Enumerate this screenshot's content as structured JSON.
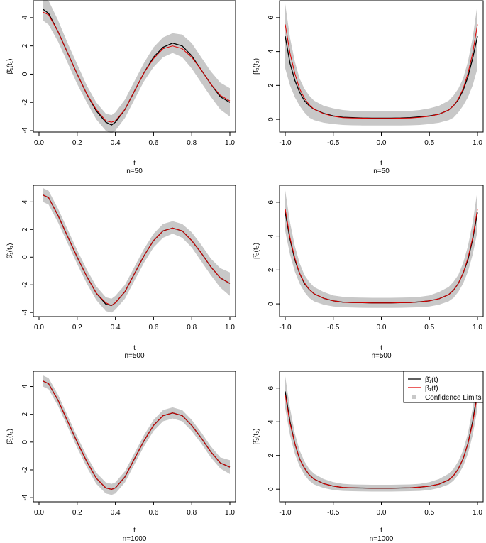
{
  "colors": {
    "estimate": "#000000",
    "true": "#e00000",
    "band": "#c8c8c8",
    "axis": "#000000"
  },
  "legend": {
    "entries": [
      {
        "label": "β̂₁(t)",
        "type": "line",
        "color": "#000000"
      },
      {
        "label": "β₁(t)",
        "type": "line",
        "color": "#e00000"
      },
      {
        "label": "Confidence Limits",
        "type": "square",
        "color": "#c8c8c8"
      }
    ],
    "position": "top-right of bottom-right panel"
  },
  "chart_data": [
    {
      "type": "line",
      "panel": "beta1",
      "xlabel": "t",
      "subtitle": "n=50",
      "ylabel": "β̂₁(t₁)",
      "xlim": [
        0,
        1
      ],
      "ylim": [
        -4.1,
        5.2
      ],
      "xticks": [
        0,
        0.2,
        0.4,
        0.6,
        0.8,
        1
      ],
      "xtick_labels": [
        "0.0",
        "0.2",
        "0.4",
        "0.6",
        "0.8",
        "1.0"
      ],
      "yticks": [
        -4,
        -2,
        0,
        2,
        4
      ],
      "ytick_labels": [
        "-4",
        "-2",
        "0",
        "2",
        "4"
      ],
      "x": [
        0.02,
        0.05,
        0.1,
        0.15,
        0.2,
        0.25,
        0.3,
        0.35,
        0.38,
        0.4,
        0.45,
        0.5,
        0.55,
        0.6,
        0.65,
        0.7,
        0.75,
        0.8,
        0.85,
        0.9,
        0.95,
        1.0
      ],
      "series": [
        {
          "name": "β̂₁(t)",
          "values": [
            4.6,
            4.3,
            3.0,
            1.5,
            0.0,
            -1.4,
            -2.6,
            -3.4,
            -3.6,
            -3.4,
            -2.5,
            -1.2,
            0.1,
            1.2,
            1.9,
            2.2,
            2.0,
            1.3,
            0.3,
            -0.7,
            -1.6,
            -2.0
          ]
        },
        {
          "name": "β₁(t)",
          "values": [
            4.4,
            4.2,
            3.0,
            1.5,
            0.0,
            -1.4,
            -2.5,
            -3.3,
            -3.4,
            -3.3,
            -2.5,
            -1.2,
            0.1,
            1.1,
            1.8,
            2.0,
            1.8,
            1.2,
            0.3,
            -0.7,
            -1.5,
            -1.9
          ]
        },
        {
          "name": "Confidence Limits",
          "lower": [
            3.8,
            3.5,
            2.3,
            0.8,
            -0.7,
            -2.0,
            -3.2,
            -4.0,
            -4.2,
            -4.0,
            -3.1,
            -1.8,
            -0.5,
            0.5,
            1.2,
            1.5,
            1.2,
            0.4,
            -0.6,
            -1.6,
            -2.5,
            -3.0
          ],
          "upper": [
            5.4,
            5.2,
            3.8,
            2.2,
            0.7,
            -0.8,
            -2.0,
            -2.8,
            -2.9,
            -2.7,
            -1.8,
            -0.5,
            0.8,
            1.9,
            2.6,
            2.9,
            2.8,
            2.2,
            1.2,
            0.2,
            -0.6,
            -1.0
          ]
        }
      ]
    },
    {
      "type": "line",
      "panel": "beta2",
      "xlabel": "t",
      "subtitle": "n=50",
      "ylabel": "β̂₂(t₂)",
      "xlim": [
        -1,
        1
      ],
      "ylim": [
        -0.75,
        7.0
      ],
      "xticks": [
        -1,
        -0.5,
        0,
        0.5,
        1
      ],
      "xtick_labels": [
        "-1.0",
        "-0.5",
        "0.0",
        "0.5",
        "1.0"
      ],
      "yticks": [
        0,
        2,
        4,
        6
      ],
      "ytick_labels": [
        "0",
        "2",
        "4",
        "6"
      ],
      "x": [
        -1.0,
        -0.95,
        -0.9,
        -0.85,
        -0.8,
        -0.75,
        -0.7,
        -0.6,
        -0.5,
        -0.4,
        -0.3,
        -0.2,
        -0.1,
        0.0,
        0.1,
        0.2,
        0.3,
        0.4,
        0.5,
        0.6,
        0.7,
        0.75,
        0.8,
        0.85,
        0.9,
        0.95,
        1.0
      ],
      "series": [
        {
          "name": "β̂₁(t)",
          "values": [
            4.9,
            3.3,
            2.3,
            1.6,
            1.1,
            0.8,
            0.6,
            0.35,
            0.2,
            0.12,
            0.1,
            0.08,
            0.07,
            0.07,
            0.07,
            0.08,
            0.1,
            0.15,
            0.2,
            0.3,
            0.55,
            0.8,
            1.15,
            1.7,
            2.5,
            3.6,
            4.9
          ]
        },
        {
          "name": "β₁(t)",
          "values": [
            5.6,
            3.9,
            2.7,
            1.8,
            1.25,
            0.85,
            0.6,
            0.33,
            0.18,
            0.1,
            0.08,
            0.07,
            0.06,
            0.06,
            0.06,
            0.07,
            0.08,
            0.12,
            0.18,
            0.3,
            0.55,
            0.8,
            1.2,
            1.8,
            2.7,
            3.9,
            5.6
          ]
        },
        {
          "name": "Confidence Limits",
          "lower": [
            3.0,
            2.0,
            1.3,
            0.8,
            0.4,
            0.1,
            -0.05,
            -0.2,
            -0.28,
            -0.33,
            -0.35,
            -0.36,
            -0.36,
            -0.36,
            -0.36,
            -0.36,
            -0.35,
            -0.33,
            -0.28,
            -0.2,
            -0.05,
            0.1,
            0.4,
            0.8,
            1.3,
            2.0,
            3.0
          ],
          "upper": [
            6.8,
            4.8,
            3.4,
            2.4,
            1.8,
            1.4,
            1.1,
            0.8,
            0.65,
            0.55,
            0.5,
            0.48,
            0.47,
            0.47,
            0.47,
            0.48,
            0.5,
            0.55,
            0.65,
            0.8,
            1.1,
            1.4,
            1.8,
            2.4,
            3.4,
            4.8,
            6.8
          ]
        }
      ]
    },
    {
      "type": "line",
      "panel": "beta1",
      "xlabel": "t",
      "subtitle": "n=500",
      "ylabel": "β̂₁(t₁)",
      "xlim": [
        0,
        1
      ],
      "ylim": [
        -4.3,
        5.2
      ],
      "xticks": [
        0,
        0.2,
        0.4,
        0.6,
        0.8,
        1
      ],
      "xtick_labels": [
        "0.0",
        "0.2",
        "0.4",
        "0.6",
        "0.8",
        "1.0"
      ],
      "yticks": [
        -4,
        -2,
        0,
        2,
        4
      ],
      "ytick_labels": [
        "-4",
        "-2",
        "0",
        "2",
        "4"
      ],
      "x": [
        0.02,
        0.05,
        0.1,
        0.15,
        0.2,
        0.25,
        0.3,
        0.35,
        0.38,
        0.4,
        0.45,
        0.5,
        0.55,
        0.6,
        0.65,
        0.7,
        0.75,
        0.8,
        0.85,
        0.9,
        0.95,
        1.0
      ],
      "series": [
        {
          "name": "β̂₁(t)",
          "values": [
            4.5,
            4.3,
            3.0,
            1.5,
            0.0,
            -1.4,
            -2.6,
            -3.4,
            -3.5,
            -3.3,
            -2.5,
            -1.2,
            0.1,
            1.2,
            1.9,
            2.1,
            1.9,
            1.2,
            0.3,
            -0.7,
            -1.5,
            -1.9
          ]
        },
        {
          "name": "β₁(t)",
          "values": [
            4.5,
            4.3,
            3.0,
            1.5,
            0.0,
            -1.4,
            -2.6,
            -3.3,
            -3.5,
            -3.3,
            -2.5,
            -1.2,
            0.1,
            1.2,
            1.9,
            2.1,
            1.9,
            1.2,
            0.3,
            -0.7,
            -1.5,
            -1.9
          ]
        },
        {
          "name": "Confidence Limits",
          "lower": [
            4.0,
            3.8,
            2.5,
            1.0,
            -0.5,
            -1.9,
            -3.1,
            -3.9,
            -4.0,
            -3.8,
            -3.0,
            -1.7,
            -0.4,
            0.7,
            1.4,
            1.7,
            1.4,
            0.7,
            -0.3,
            -1.3,
            -2.2,
            -2.8
          ],
          "upper": [
            5.0,
            4.8,
            3.5,
            2.0,
            0.5,
            -0.9,
            -2.1,
            -2.9,
            -3.0,
            -2.8,
            -2.0,
            -0.7,
            0.6,
            1.7,
            2.4,
            2.6,
            2.4,
            1.8,
            0.9,
            -0.1,
            -0.8,
            -1.1
          ]
        }
      ]
    },
    {
      "type": "line",
      "panel": "beta2",
      "xlabel": "t",
      "subtitle": "n=500",
      "ylabel": "β̂₂(t₂)",
      "xlim": [
        -1,
        1
      ],
      "ylim": [
        -0.75,
        7.0
      ],
      "xticks": [
        -1,
        -0.5,
        0,
        0.5,
        1
      ],
      "xtick_labels": [
        "-1.0",
        "-0.5",
        "0.0",
        "0.5",
        "1.0"
      ],
      "yticks": [
        0,
        2,
        4,
        6
      ],
      "ytick_labels": [
        "0",
        "2",
        "4",
        "6"
      ],
      "x": [
        -1.0,
        -0.95,
        -0.9,
        -0.85,
        -0.8,
        -0.75,
        -0.7,
        -0.6,
        -0.5,
        -0.4,
        -0.3,
        -0.2,
        -0.1,
        0.0,
        0.1,
        0.2,
        0.3,
        0.4,
        0.5,
        0.6,
        0.7,
        0.75,
        0.8,
        0.85,
        0.9,
        0.95,
        1.0
      ],
      "series": [
        {
          "name": "β̂₁(t)",
          "values": [
            5.4,
            3.8,
            2.6,
            1.8,
            1.2,
            0.85,
            0.6,
            0.33,
            0.18,
            0.1,
            0.08,
            0.07,
            0.06,
            0.06,
            0.06,
            0.07,
            0.08,
            0.12,
            0.18,
            0.3,
            0.55,
            0.8,
            1.2,
            1.8,
            2.6,
            3.8,
            5.4
          ]
        },
        {
          "name": "β₁(t)",
          "values": [
            5.6,
            3.9,
            2.7,
            1.8,
            1.25,
            0.85,
            0.6,
            0.33,
            0.18,
            0.1,
            0.08,
            0.07,
            0.06,
            0.06,
            0.06,
            0.07,
            0.08,
            0.12,
            0.18,
            0.3,
            0.55,
            0.8,
            1.2,
            1.8,
            2.7,
            3.9,
            5.6
          ]
        },
        {
          "name": "Confidence Limits",
          "lower": [
            4.3,
            2.9,
            1.9,
            1.2,
            0.7,
            0.35,
            0.15,
            -0.05,
            -0.15,
            -0.2,
            -0.22,
            -0.23,
            -0.24,
            -0.24,
            -0.24,
            -0.23,
            -0.22,
            -0.2,
            -0.15,
            -0.05,
            0.15,
            0.35,
            0.7,
            1.2,
            1.9,
            2.9,
            4.3
          ],
          "upper": [
            6.7,
            4.8,
            3.4,
            2.4,
            1.7,
            1.3,
            1.0,
            0.7,
            0.5,
            0.42,
            0.38,
            0.37,
            0.36,
            0.36,
            0.36,
            0.37,
            0.38,
            0.42,
            0.5,
            0.7,
            1.0,
            1.3,
            1.7,
            2.4,
            3.4,
            4.8,
            6.7
          ]
        }
      ]
    },
    {
      "type": "line",
      "panel": "beta1",
      "xlabel": "t",
      "subtitle": "n=1000",
      "ylabel": "β̂₁(t₁)",
      "xlim": [
        0,
        1
      ],
      "ylim": [
        -4.3,
        5.1
      ],
      "xticks": [
        0,
        0.2,
        0.4,
        0.6,
        0.8,
        1
      ],
      "xtick_labels": [
        "0.0",
        "0.2",
        "0.4",
        "0.6",
        "0.8",
        "1.0"
      ],
      "yticks": [
        -4,
        -2,
        0,
        2,
        4
      ],
      "ytick_labels": [
        "-4",
        "-2",
        "0",
        "2",
        "4"
      ],
      "x": [
        0.02,
        0.05,
        0.1,
        0.15,
        0.2,
        0.25,
        0.3,
        0.35,
        0.38,
        0.4,
        0.45,
        0.5,
        0.55,
        0.6,
        0.65,
        0.7,
        0.75,
        0.8,
        0.85,
        0.9,
        0.95,
        1.0
      ],
      "series": [
        {
          "name": "β̂₁(t)",
          "values": [
            4.4,
            4.2,
            3.0,
            1.5,
            0.0,
            -1.4,
            -2.6,
            -3.3,
            -3.4,
            -3.3,
            -2.5,
            -1.2,
            0.1,
            1.2,
            1.9,
            2.1,
            1.9,
            1.2,
            0.3,
            -0.7,
            -1.5,
            -1.8
          ]
        },
        {
          "name": "β₁(t)",
          "values": [
            4.4,
            4.2,
            3.0,
            1.5,
            0.0,
            -1.4,
            -2.6,
            -3.3,
            -3.4,
            -3.3,
            -2.5,
            -1.2,
            0.1,
            1.2,
            1.9,
            2.1,
            1.9,
            1.2,
            0.3,
            -0.7,
            -1.5,
            -1.8
          ]
        },
        {
          "name": "Confidence Limits",
          "lower": [
            4.0,
            3.8,
            2.6,
            1.1,
            -0.4,
            -1.8,
            -3.0,
            -3.7,
            -3.8,
            -3.7,
            -2.9,
            -1.6,
            -0.3,
            0.8,
            1.5,
            1.7,
            1.5,
            0.8,
            -0.1,
            -1.1,
            -1.9,
            -2.3
          ],
          "upper": [
            4.8,
            4.6,
            3.4,
            1.9,
            0.4,
            -1.0,
            -2.2,
            -2.9,
            -3.0,
            -2.9,
            -2.1,
            -0.8,
            0.5,
            1.6,
            2.3,
            2.5,
            2.3,
            1.6,
            0.7,
            -0.3,
            -1.1,
            -1.3
          ]
        }
      ]
    },
    {
      "type": "line",
      "panel": "beta2",
      "xlabel": "t",
      "subtitle": "n=1000",
      "ylabel": "β̂₂(t₂)",
      "xlim": [
        -1,
        1
      ],
      "ylim": [
        -0.75,
        7.0
      ],
      "xticks": [
        -1,
        -0.5,
        0,
        0.5,
        1
      ],
      "xtick_labels": [
        "-1.0",
        "-0.5",
        "0.0",
        "0.5",
        "1.0"
      ],
      "yticks": [
        0,
        2,
        4,
        6
      ],
      "ytick_labels": [
        "0",
        "2",
        "4",
        "6"
      ],
      "x": [
        -1.0,
        -0.95,
        -0.9,
        -0.85,
        -0.8,
        -0.75,
        -0.7,
        -0.6,
        -0.5,
        -0.4,
        -0.3,
        -0.2,
        -0.1,
        0.0,
        0.1,
        0.2,
        0.3,
        0.4,
        0.5,
        0.6,
        0.7,
        0.75,
        0.8,
        0.85,
        0.9,
        0.95,
        1.0
      ],
      "series": [
        {
          "name": "β̂₁(t)",
          "values": [
            5.8,
            4.0,
            2.7,
            1.8,
            1.25,
            0.85,
            0.6,
            0.33,
            0.18,
            0.1,
            0.08,
            0.07,
            0.06,
            0.06,
            0.06,
            0.07,
            0.08,
            0.12,
            0.18,
            0.3,
            0.55,
            0.8,
            1.2,
            1.8,
            2.7,
            4.0,
            5.8
          ]
        },
        {
          "name": "β₁(t)",
          "values": [
            5.6,
            3.9,
            2.7,
            1.8,
            1.25,
            0.85,
            0.6,
            0.33,
            0.18,
            0.1,
            0.08,
            0.07,
            0.06,
            0.06,
            0.06,
            0.07,
            0.08,
            0.12,
            0.18,
            0.3,
            0.55,
            0.8,
            1.2,
            1.8,
            2.7,
            3.9,
            5.6
          ]
        },
        {
          "name": "Confidence Limits",
          "lower": [
            4.8,
            3.2,
            2.1,
            1.35,
            0.85,
            0.5,
            0.28,
            0.07,
            -0.05,
            -0.1,
            -0.12,
            -0.13,
            -0.14,
            -0.14,
            -0.14,
            -0.13,
            -0.12,
            -0.1,
            -0.05,
            0.07,
            0.28,
            0.5,
            0.85,
            1.35,
            2.1,
            3.2,
            4.8
          ],
          "upper": [
            6.7,
            4.8,
            3.3,
            2.3,
            1.65,
            1.2,
            0.92,
            0.6,
            0.42,
            0.32,
            0.28,
            0.27,
            0.26,
            0.26,
            0.26,
            0.27,
            0.28,
            0.32,
            0.42,
            0.6,
            0.92,
            1.2,
            1.65,
            2.3,
            3.3,
            4.8,
            6.7
          ]
        }
      ]
    }
  ]
}
